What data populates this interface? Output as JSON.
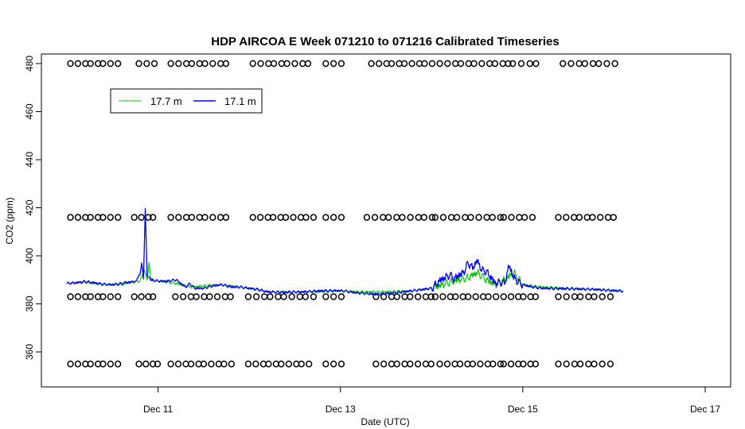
{
  "chart_data": {
    "type": "line",
    "title": "HDP AIRCOA E  Week 071210 to 071216  Calibrated Timeseries",
    "xlabel": "Date (UTC)",
    "ylabel": "CO2 (ppm)",
    "x_unit": "days since Dec 10 00:00",
    "xlim": [
      0.0,
      7.5
    ],
    "ylim": [
      345,
      484
    ],
    "x_ticks": [
      {
        "x": 1.0,
        "label": "Dec 11"
      },
      {
        "x": 3.0,
        "label": "Dec 13"
      },
      {
        "x": 5.0,
        "label": "Dec 15"
      },
      {
        "x": 7.0,
        "label": "Dec 17"
      }
    ],
    "y_ticks": [
      360,
      380,
      400,
      420,
      440,
      460,
      480
    ],
    "legend": {
      "position": "top-left",
      "entries": [
        "17.7 m",
        "17.1 m"
      ]
    },
    "series": [
      {
        "name": "17.7 m",
        "color": "#00c000",
        "x": [
          0.0,
          0.2,
          0.4,
          0.6,
          0.7,
          0.8,
          0.85,
          0.88,
          0.9,
          0.92,
          0.95,
          1.0,
          1.2,
          1.35,
          1.5,
          1.7,
          1.8,
          2.0,
          2.2,
          2.5,
          2.8,
          3.0,
          3.2,
          3.5,
          3.8,
          4.0,
          4.2,
          4.4,
          4.5,
          4.6,
          4.7,
          4.8,
          4.9,
          5.0,
          5.2,
          5.5,
          5.8,
          6.0,
          6.1
        ],
        "values": [
          388.5,
          389.0,
          388.0,
          388.0,
          389.0,
          389.5,
          394.0,
          390.0,
          397.0,
          391.0,
          390.0,
          389.5,
          388.5,
          387.0,
          387.5,
          388.0,
          387.5,
          386.5,
          385.0,
          385.0,
          385.0,
          385.5,
          385.0,
          385.0,
          385.5,
          386.5,
          389.0,
          391.0,
          393.0,
          390.0,
          388.0,
          390.0,
          393.0,
          388.0,
          387.0,
          386.5,
          386.0,
          385.5,
          385.5
        ]
      },
      {
        "name": "17.1 m",
        "color": "#0000ff",
        "x": [
          0.0,
          0.1,
          0.2,
          0.3,
          0.4,
          0.5,
          0.6,
          0.65,
          0.7,
          0.75,
          0.78,
          0.8,
          0.82,
          0.84,
          0.86,
          0.88,
          0.9,
          0.92,
          0.95,
          1.0,
          1.1,
          1.2,
          1.3,
          1.35,
          1.4,
          1.5,
          1.6,
          1.7,
          1.8,
          1.9,
          2.0,
          2.1,
          2.2,
          2.4,
          2.6,
          2.8,
          3.0,
          3.1,
          3.2,
          3.4,
          3.6,
          3.8,
          3.9,
          4.0,
          4.1,
          4.2,
          4.25,
          4.3,
          4.35,
          4.4,
          4.45,
          4.5,
          4.55,
          4.6,
          4.65,
          4.7,
          4.75,
          4.8,
          4.85,
          4.9,
          4.95,
          5.0,
          5.1,
          5.2,
          5.4,
          5.6,
          5.8,
          6.0,
          6.1
        ],
        "values": [
          388.5,
          388.8,
          389.3,
          388.8,
          388.2,
          388.0,
          388.5,
          389.0,
          389.0,
          389.5,
          391.0,
          392.0,
          397.0,
          390.5,
          419.5,
          392.0,
          391.0,
          390.0,
          389.8,
          389.5,
          389.5,
          390.0,
          387.0,
          388.5,
          386.5,
          386.5,
          387.5,
          388.0,
          387.0,
          387.0,
          386.5,
          386.0,
          385.0,
          384.8,
          385.0,
          385.5,
          385.5,
          385.0,
          384.5,
          384.0,
          384.5,
          385.5,
          386.0,
          386.5,
          390.0,
          392.0,
          390.5,
          392.0,
          393.0,
          397.0,
          395.0,
          398.0,
          394.0,
          393.5,
          391.0,
          388.5,
          389.0,
          388.5,
          396.0,
          391.0,
          389.0,
          388.0,
          387.0,
          386.5,
          386.3,
          386.2,
          386.0,
          385.5,
          385.3
        ]
      }
    ],
    "flag_markers": {
      "rows": [
        {
          "y": 480,
          "segments": [
            [
              0.05,
              0.55
            ],
            [
              0.8,
              0.95
            ],
            [
              1.15,
              1.75
            ],
            [
              2.05,
              2.65
            ],
            [
              2.85,
              3.0
            ],
            [
              3.35,
              4.0
            ],
            [
              4.1,
              4.85
            ],
            [
              4.9,
              5.15
            ],
            [
              5.45,
              6.0
            ]
          ]
        },
        {
          "y": 416,
          "segments": [
            [
              0.05,
              0.55
            ],
            [
              0.75,
              0.95
            ],
            [
              1.15,
              1.75
            ],
            [
              2.05,
              2.7
            ],
            [
              2.85,
              3.0
            ],
            [
              3.3,
              4.0
            ],
            [
              4.05,
              4.75
            ],
            [
              4.8,
              5.1
            ],
            [
              5.4,
              6.0
            ]
          ]
        },
        {
          "y": 383,
          "segments": [
            [
              0.05,
              0.55
            ],
            [
              0.75,
              0.95
            ],
            [
              1.2,
              1.8
            ],
            [
              2.0,
              2.7
            ],
            [
              2.85,
              3.0
            ],
            [
              3.4,
              4.0
            ],
            [
              4.05,
              4.7
            ],
            [
              4.8,
              5.15
            ],
            [
              5.4,
              5.95
            ]
          ]
        },
        {
          "y": 355,
          "segments": [
            [
              0.05,
              0.55
            ],
            [
              0.8,
              1.0
            ],
            [
              1.15,
              1.8
            ],
            [
              2.0,
              2.65
            ],
            [
              2.85,
              3.0
            ],
            [
              3.4,
              4.0
            ],
            [
              4.1,
              4.75
            ],
            [
              4.8,
              5.15
            ],
            [
              5.4,
              5.95
            ]
          ]
        }
      ]
    }
  }
}
